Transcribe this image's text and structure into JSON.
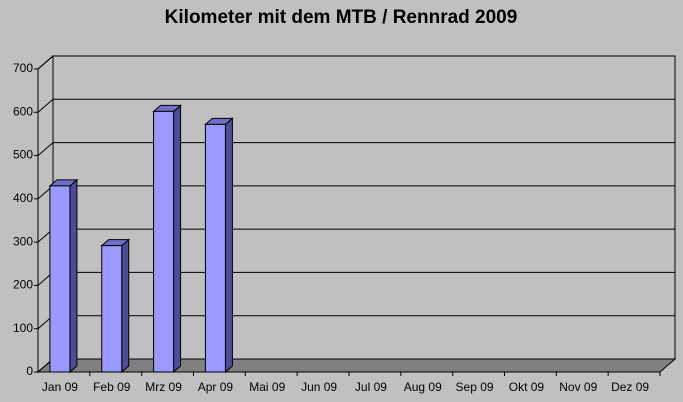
{
  "chart_data": {
    "type": "bar3d",
    "title": "Kilometer mit dem MTB / Rennrad 2009",
    "categories": [
      "Jan 09",
      "Feb 09",
      "Mrz 09",
      "Apr 09",
      "Mai 09",
      "Jun 09",
      "Jul 09",
      "Aug 09",
      "Sep 09",
      "Okt 09",
      "Nov 09",
      "Dez 09"
    ],
    "values": [
      430,
      292,
      602,
      572,
      null,
      null,
      null,
      null,
      null,
      null,
      null,
      null
    ],
    "color": "#9999ff",
    "ylim": [
      0,
      700
    ],
    "yticks": [
      0,
      100,
      200,
      300,
      400,
      500,
      600,
      700
    ],
    "grid": true
  }
}
